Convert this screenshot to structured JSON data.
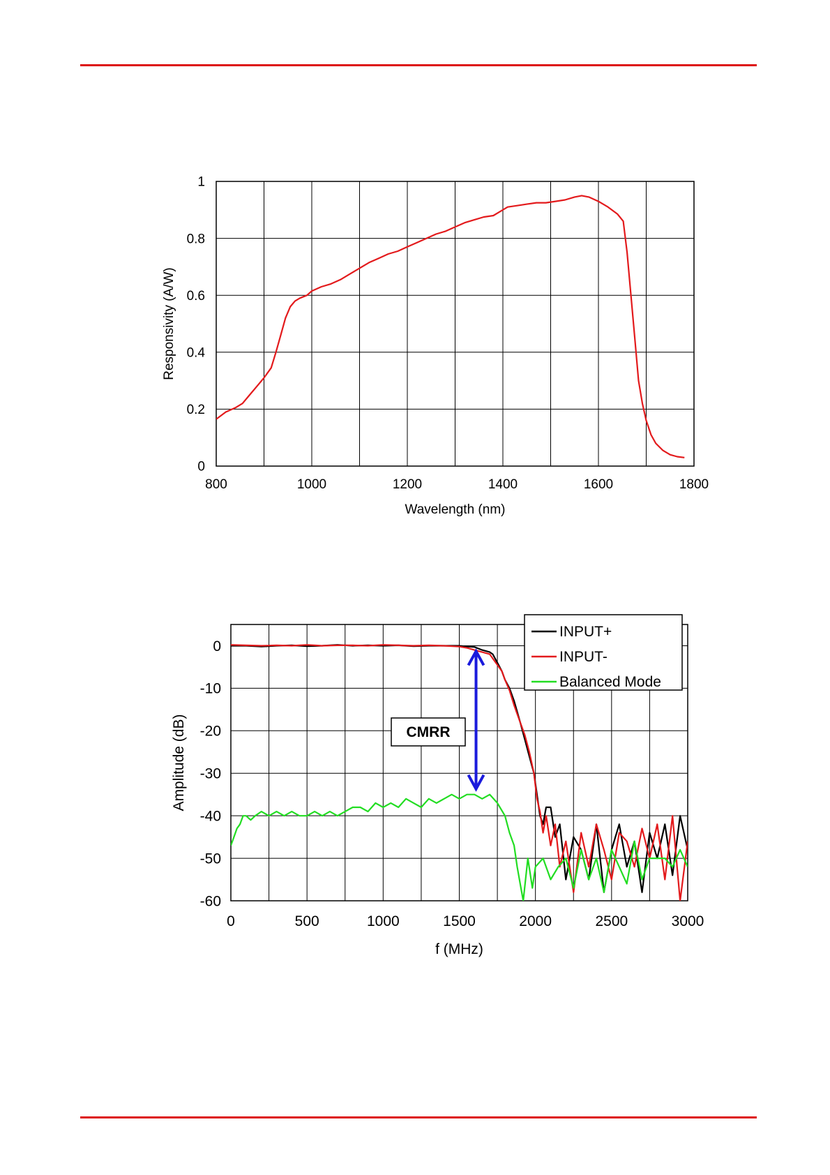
{
  "page": {
    "rule_color": "#dd1111"
  },
  "charts": [
    {
      "type": "line",
      "title": "",
      "xlabel": "Wavelength (nm)",
      "ylabel": "Responsivity (A/W)",
      "xlim": [
        800,
        1800
      ],
      "ylim": [
        0,
        1
      ],
      "xticks": [
        800,
        1000,
        1200,
        1400,
        1600,
        1800
      ],
      "yticks": [
        0,
        0.2,
        0.4,
        0.6,
        0.8,
        1
      ],
      "ytick_labels": [
        "0",
        "0.2",
        "0.4",
        "0.6",
        "0.8",
        "1"
      ],
      "x_gridlines": [
        800,
        900,
        1000,
        1100,
        1200,
        1300,
        1400,
        1500,
        1600,
        1700,
        1800
      ],
      "grid": true,
      "legend": "none",
      "series": [
        {
          "color": "#e31a1c",
          "x": [
            800,
            820,
            840,
            855,
            870,
            885,
            900,
            915,
            925,
            935,
            945,
            955,
            965,
            975,
            990,
            1000,
            1020,
            1040,
            1060,
            1080,
            1100,
            1120,
            1140,
            1160,
            1180,
            1200,
            1220,
            1240,
            1260,
            1280,
            1300,
            1320,
            1340,
            1360,
            1380,
            1395,
            1410,
            1430,
            1450,
            1470,
            1490,
            1510,
            1530,
            1550,
            1565,
            1580,
            1600,
            1620,
            1640,
            1652,
            1660,
            1668,
            1676,
            1684,
            1692,
            1700,
            1710,
            1720,
            1735,
            1750,
            1765,
            1780
          ],
          "y": [
            0.165,
            0.19,
            0.205,
            0.22,
            0.25,
            0.28,
            0.31,
            0.345,
            0.4,
            0.46,
            0.52,
            0.56,
            0.58,
            0.59,
            0.6,
            0.615,
            0.63,
            0.64,
            0.655,
            0.675,
            0.695,
            0.715,
            0.73,
            0.745,
            0.755,
            0.77,
            0.785,
            0.8,
            0.815,
            0.825,
            0.84,
            0.855,
            0.865,
            0.875,
            0.88,
            0.895,
            0.91,
            0.915,
            0.92,
            0.925,
            0.925,
            0.93,
            0.935,
            0.945,
            0.95,
            0.945,
            0.93,
            0.91,
            0.885,
            0.86,
            0.75,
            0.6,
            0.45,
            0.3,
            0.22,
            0.16,
            0.11,
            0.08,
            0.055,
            0.04,
            0.033,
            0.03
          ]
        }
      ]
    },
    {
      "type": "line",
      "title": "",
      "xlabel": "f (MHz)",
      "ylabel": "Amplitude (dB)",
      "xlim": [
        0,
        3000
      ],
      "ylim": [
        -60,
        5
      ],
      "xticks": [
        0,
        500,
        1000,
        1500,
        2000,
        2500,
        3000
      ],
      "yticks": [
        -60,
        -50,
        -40,
        -30,
        -20,
        -10,
        0
      ],
      "ytick_labels": [
        "-60",
        "-50",
        "-40",
        "-30",
        "-20",
        "-10",
        "0"
      ],
      "x_gridlines": [
        0,
        250,
        500,
        750,
        1000,
        1250,
        1500,
        1750,
        2000,
        2250,
        2500,
        2750,
        3000
      ],
      "grid": true,
      "legend": "top-right",
      "annotation": {
        "text": "CMRR",
        "arrow_color": "#1a1adc",
        "arrow_x": 1610,
        "arrow_y_top": 0,
        "arrow_y_bottom": -35
      },
      "series": [
        {
          "name": "INPUT+",
          "color": "#000000",
          "x": [
            0,
            100,
            200,
            300,
            400,
            500,
            600,
            700,
            800,
            900,
            1000,
            1100,
            1200,
            1300,
            1400,
            1500,
            1550,
            1600,
            1650,
            1700,
            1720,
            1750,
            1780,
            1800,
            1830,
            1860,
            1900,
            1930,
            1960,
            1990,
            2010,
            2030,
            2050,
            2070,
            2100,
            2130,
            2160,
            2200,
            2250,
            2300,
            2350,
            2400,
            2450,
            2500,
            2550,
            2600,
            2650,
            2700,
            2750,
            2800,
            2850,
            2900,
            2950,
            3000
          ],
          "y": [
            0,
            0,
            -0.2,
            0,
            0.1,
            -0.1,
            0,
            0.2,
            0,
            0.1,
            0,
            0.1,
            -0.1,
            0,
            0,
            0,
            -0.2,
            -0.3,
            -1,
            -1.5,
            -2,
            -4,
            -6,
            -8,
            -10,
            -13,
            -18,
            -22,
            -26,
            -30,
            -35,
            -40,
            -42,
            -38,
            -38,
            -45,
            -42,
            -55,
            -45,
            -48,
            -55,
            -42,
            -58,
            -48,
            -42,
            -52,
            -46,
            -58,
            -44,
            -50,
            -42,
            -54,
            -40,
            -48
          ]
        },
        {
          "name": "INPUT-",
          "color": "#e31a1c",
          "x": [
            0,
            100,
            200,
            300,
            400,
            500,
            600,
            700,
            800,
            900,
            1000,
            1100,
            1200,
            1300,
            1400,
            1500,
            1550,
            1600,
            1650,
            1700,
            1720,
            1750,
            1780,
            1800,
            1830,
            1860,
            1900,
            1930,
            1960,
            1990,
            2010,
            2030,
            2050,
            2070,
            2100,
            2130,
            2160,
            2200,
            2250,
            2300,
            2350,
            2400,
            2450,
            2500,
            2550,
            2600,
            2650,
            2700,
            2750,
            2800,
            2850,
            2900,
            2950,
            3000
          ],
          "y": [
            0.2,
            0.1,
            0,
            0.1,
            0,
            0.2,
            0,
            0.1,
            0.1,
            0,
            0.2,
            0.1,
            0,
            0.1,
            0,
            -0.2,
            -0.5,
            -1,
            -1.5,
            -2,
            -3,
            -4.5,
            -6,
            -8,
            -10.5,
            -14,
            -18,
            -21,
            -25,
            -30,
            -36,
            -39,
            -44,
            -40,
            -47,
            -42,
            -52,
            -46,
            -58,
            -44,
            -52,
            -42,
            -48,
            -55,
            -44,
            -46,
            -52,
            -43,
            -50,
            -42,
            -55,
            -40,
            -60,
            -46
          ]
        },
        {
          "name": "Balanced Mode",
          "color": "#22dd22",
          "x": [
            0,
            20,
            40,
            60,
            80,
            100,
            130,
            160,
            200,
            250,
            300,
            350,
            400,
            450,
            500,
            550,
            600,
            650,
            700,
            750,
            800,
            850,
            900,
            950,
            1000,
            1050,
            1100,
            1150,
            1200,
            1250,
            1300,
            1350,
            1400,
            1450,
            1500,
            1550,
            1600,
            1650,
            1700,
            1750,
            1800,
            1830,
            1860,
            1880,
            1900,
            1920,
            1950,
            1980,
            2000,
            2050,
            2100,
            2150,
            2200,
            2250,
            2300,
            2350,
            2400,
            2450,
            2500,
            2550,
            2600,
            2650,
            2700,
            2750,
            2800,
            2850,
            2900,
            2950,
            3000
          ],
          "y": [
            -47,
            -45,
            -43,
            -42,
            -40,
            -40,
            -41,
            -40,
            -39,
            -40,
            -39,
            -40,
            -39,
            -40,
            -40,
            -39,
            -40,
            -39,
            -40,
            -39,
            -38,
            -38,
            -39,
            -37,
            -38,
            -37,
            -38,
            -36,
            -37,
            -38,
            -36,
            -37,
            -36,
            -35,
            -36,
            -35,
            -35,
            -36,
            -35,
            -37,
            -40,
            -44,
            -47,
            -52,
            -56,
            -60,
            -50,
            -57,
            -52,
            -50,
            -55,
            -52,
            -50,
            -57,
            -48,
            -55,
            -50,
            -58,
            -48,
            -52,
            -56,
            -46,
            -55,
            -50,
            -50,
            -50,
            -52,
            -48,
            -52
          ]
        }
      ]
    }
  ]
}
